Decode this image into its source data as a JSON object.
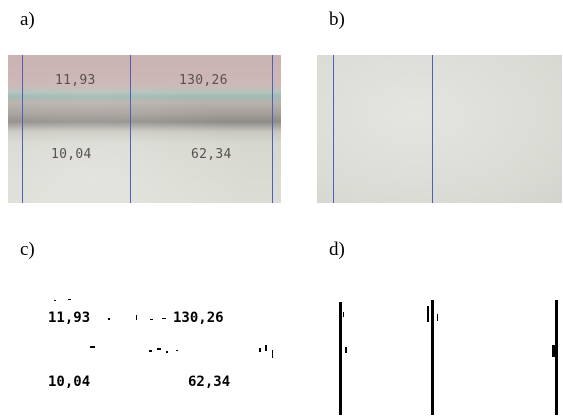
{
  "panels": {
    "a": {
      "label": "a)",
      "values": {
        "row1_left": "11,93",
        "row1_right": "130,26",
        "row2_left": "10,04",
        "row2_right": "62,34"
      }
    },
    "b": {
      "label": "b)"
    },
    "c": {
      "label": "c)",
      "values": {
        "row1_left": "11,93",
        "row1_right": "130,26",
        "row2_left": "10,04",
        "row2_right": "62,34"
      }
    },
    "d": {
      "label": "d)"
    }
  },
  "colors": {
    "ruling_line": "#5060b8",
    "photo_text": "#5a5052",
    "binarized_ink": "#000000"
  }
}
